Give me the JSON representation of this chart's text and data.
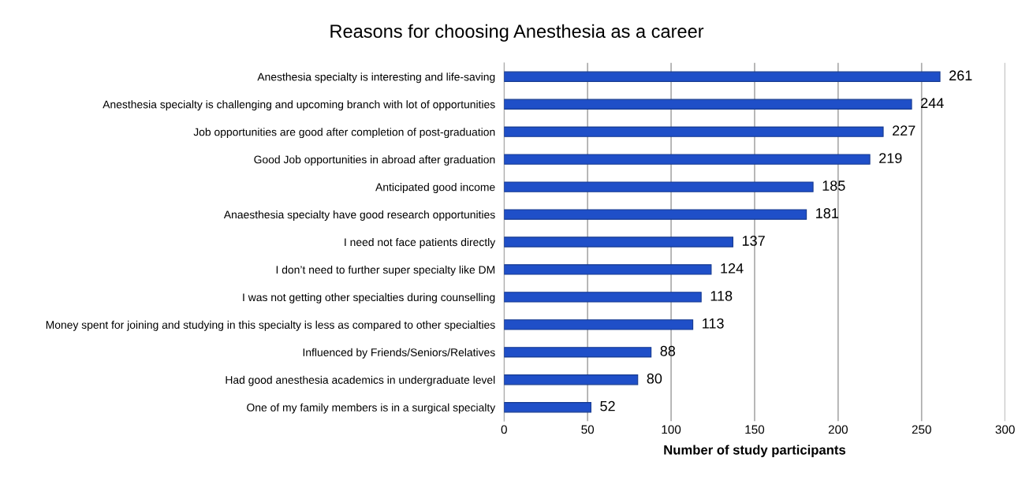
{
  "chart_data": {
    "type": "bar",
    "orientation": "horizontal",
    "title": "Reasons for choosing Anesthesia as a career",
    "xlabel": "Number of study participants",
    "categories": [
      "Anesthesia specialty is interesting and life-saving",
      "Anesthesia specialty is challenging and upcoming branch with lot of opportunities",
      "Job opportunities are good after completion of post-graduation",
      "Good Job opportunities in abroad after graduation",
      "Anticipated good income",
      "Anaesthesia specialty have good research opportunities",
      "I need not face patients directly",
      "I don’t need to further super specialty like DM",
      "I was not getting other specialties during counselling",
      "Money spent for joining and studying in this specialty is less as compared to other specialties",
      "Influenced by Friends/Seniors/Relatives",
      "Had good anesthesia academics in undergraduate level",
      "One of my family members is in a surgical specialty"
    ],
    "values": [
      261,
      244,
      227,
      219,
      185,
      181,
      137,
      124,
      118,
      113,
      88,
      80,
      52
    ],
    "color": "#1f4fc8",
    "xlim": [
      0,
      300
    ],
    "xticks": [
      0,
      50,
      100,
      150,
      200,
      250,
      300
    ],
    "grid": "x",
    "data_labels": true
  }
}
